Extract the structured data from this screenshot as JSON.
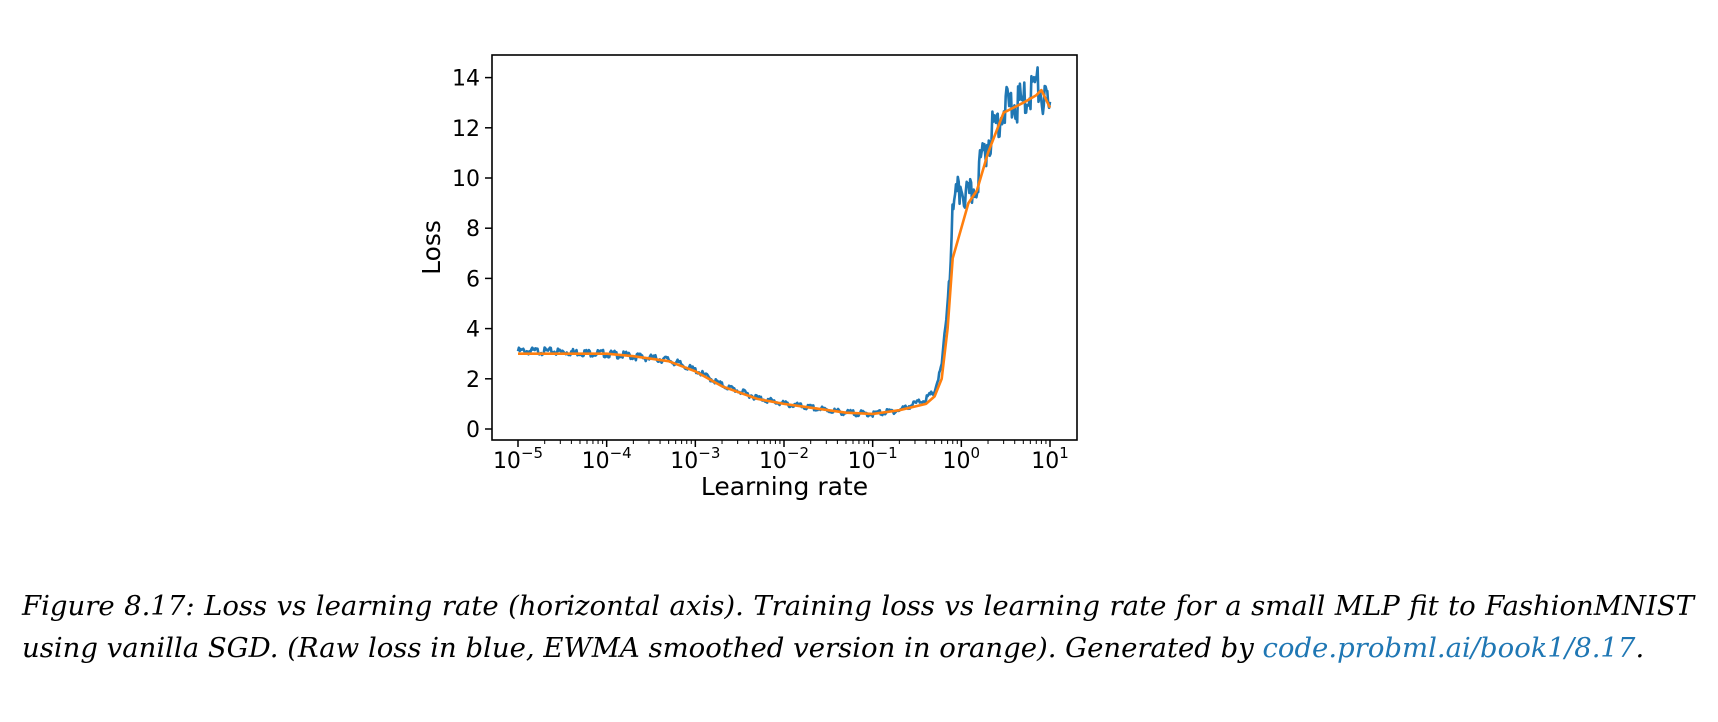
{
  "chart_data": {
    "type": "line",
    "x_scale": "log",
    "xlim": [
      1e-05,
      10
    ],
    "ylim": [
      0,
      14
    ],
    "xlabel": "Learning rate",
    "ylabel": "Loss",
    "x_ticks": [
      {
        "mantissa": "10",
        "exponent": "−5",
        "value": 1e-05
      },
      {
        "mantissa": "10",
        "exponent": "−4",
        "value": 0.0001
      },
      {
        "mantissa": "10",
        "exponent": "−3",
        "value": 0.001
      },
      {
        "mantissa": "10",
        "exponent": "−2",
        "value": 0.01
      },
      {
        "mantissa": "10",
        "exponent": "−1",
        "value": 0.1
      },
      {
        "mantissa": "10",
        "exponent": "0",
        "value": 1
      },
      {
        "mantissa": "10",
        "exponent": "1",
        "value": 10
      }
    ],
    "y_ticks": [
      "0",
      "2",
      "4",
      "6",
      "8",
      "10",
      "12",
      "14"
    ],
    "grid": false,
    "legend": "none",
    "series": [
      {
        "color": "#1f77b4",
        "style": "raw",
        "x": [
          1e-05,
          2e-05,
          5e-05,
          0.0001,
          0.0002,
          0.0005,
          0.001,
          0.002,
          0.005,
          0.01,
          0.02,
          0.05,
          0.1,
          0.2,
          0.4,
          0.5,
          0.6,
          0.7,
          0.8,
          1.0,
          1.2,
          1.5,
          2.0,
          3.0,
          5.0,
          7.0,
          8.0,
          10.0
        ],
        "y": [
          3.1,
          3.1,
          3.05,
          3.0,
          2.9,
          2.75,
          2.35,
          1.75,
          1.25,
          1.0,
          0.85,
          0.65,
          0.6,
          0.75,
          1.2,
          1.5,
          2.5,
          5.0,
          8.5,
          9.8,
          9.0,
          10.0,
          11.5,
          12.8,
          13.0,
          13.8,
          13.3,
          12.5
        ]
      },
      {
        "color": "#ff7f0e",
        "style": "ewma",
        "x": [
          1e-05,
          2e-05,
          5e-05,
          0.0001,
          0.0002,
          0.0005,
          0.001,
          0.002,
          0.005,
          0.01,
          0.02,
          0.05,
          0.1,
          0.2,
          0.4,
          0.5,
          0.6,
          0.7,
          0.8,
          1.0,
          1.2,
          1.5,
          2.0,
          3.0,
          5.0,
          7.0,
          8.0,
          10.0
        ],
        "y": [
          3.0,
          3.0,
          3.0,
          3.0,
          2.9,
          2.7,
          2.3,
          1.7,
          1.2,
          1.0,
          0.85,
          0.65,
          0.6,
          0.75,
          1.0,
          1.3,
          2.0,
          4.0,
          6.8,
          8.0,
          9.0,
          9.5,
          11.0,
          12.6,
          13.0,
          13.3,
          13.5,
          12.8
        ]
      }
    ]
  },
  "caption": {
    "lead": "Figure 8.17: Loss vs learning rate (horizontal axis). Training loss vs learning rate for a small MLP fit to FashionMNIST using vanilla SGD. (Raw loss in blue, EWMA smoothed version in orange). Generated by ",
    "link": "code.probml.ai/book1/8.17",
    "trail": "."
  }
}
